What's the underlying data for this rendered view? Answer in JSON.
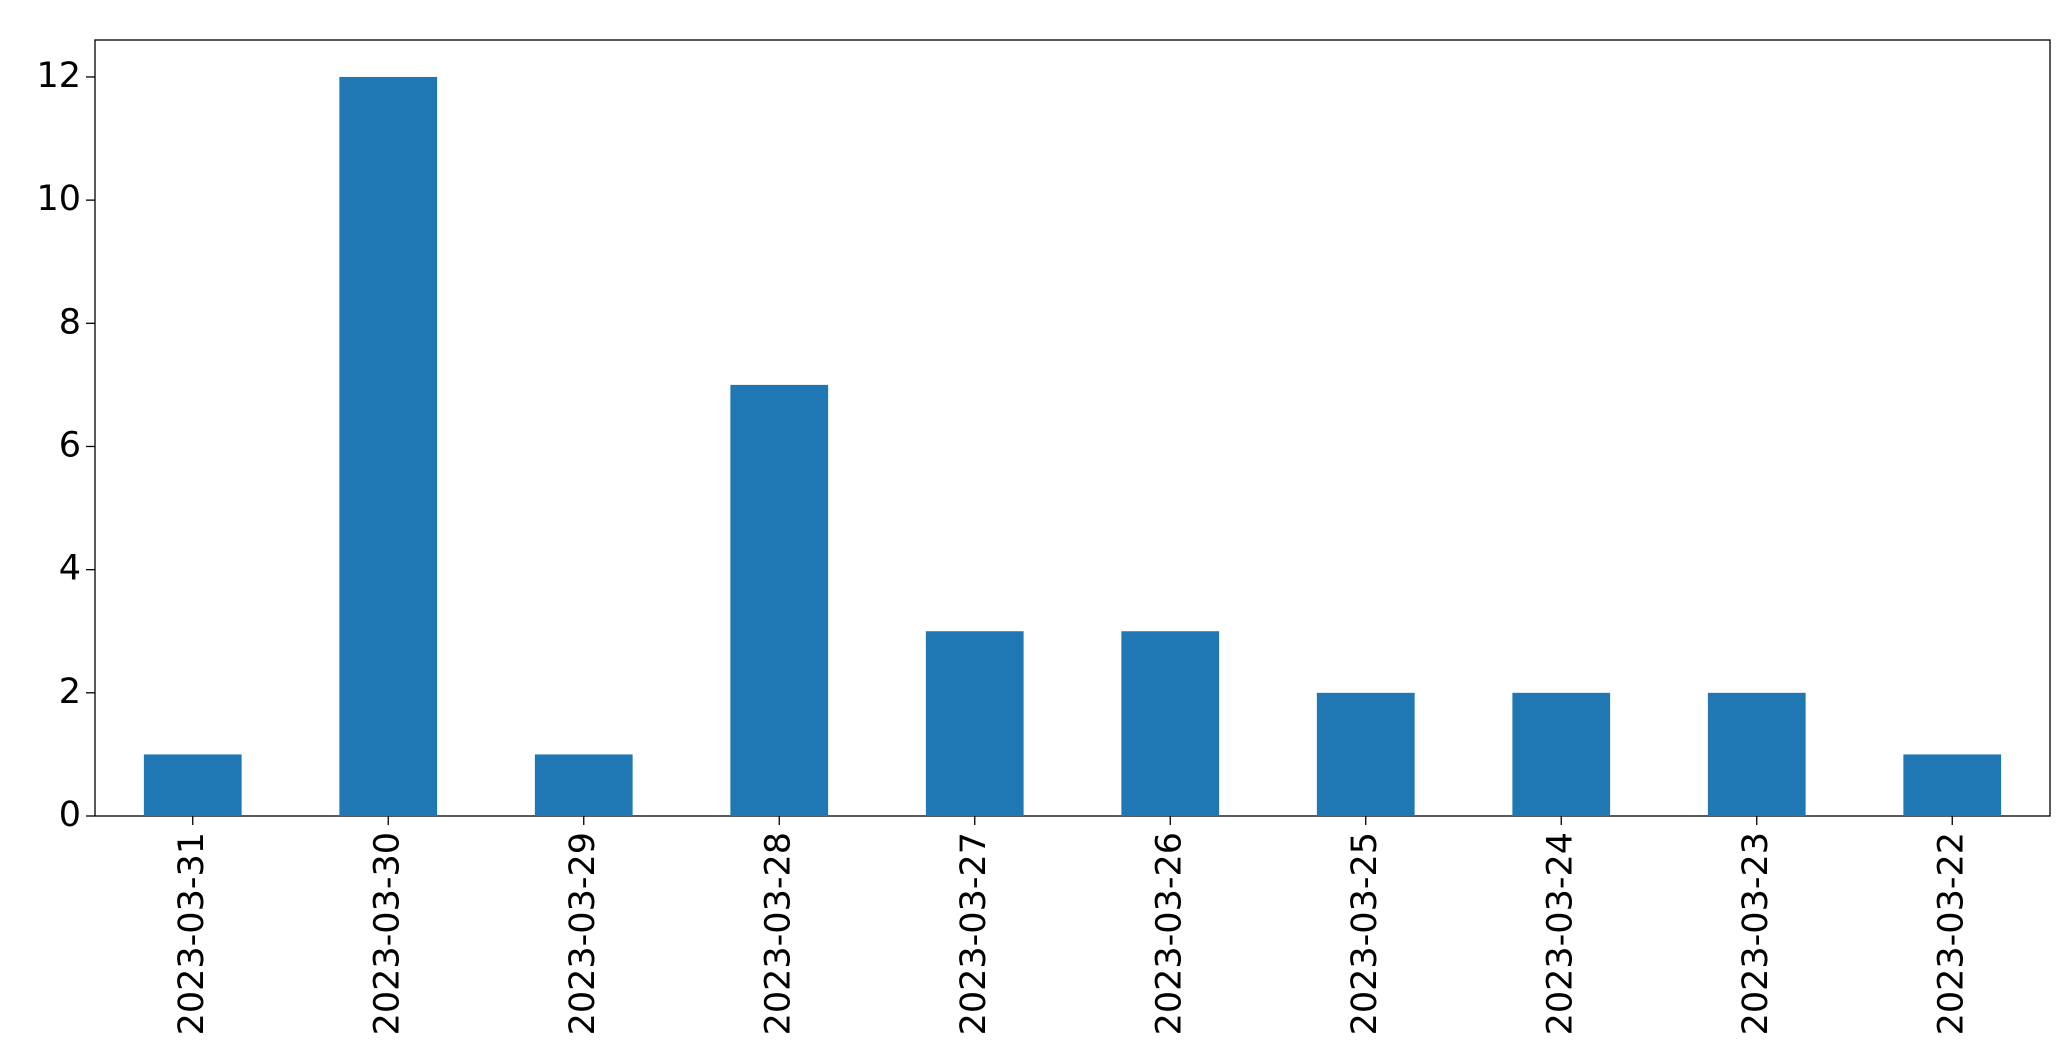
{
  "chart_data": {
    "type": "bar",
    "categories": [
      "2023-03-31",
      "2023-03-30",
      "2023-03-29",
      "2023-03-28",
      "2023-03-27",
      "2023-03-26",
      "2023-03-25",
      "2023-03-24",
      "2023-03-23",
      "2023-03-22"
    ],
    "values": [
      1,
      12,
      1,
      7,
      3,
      3,
      2,
      2,
      2,
      1
    ],
    "color": "#1f77b4",
    "ylim": [
      0,
      12.6
    ],
    "yticks": [
      0,
      2,
      4,
      6,
      8,
      10,
      12
    ],
    "grid": false
  }
}
